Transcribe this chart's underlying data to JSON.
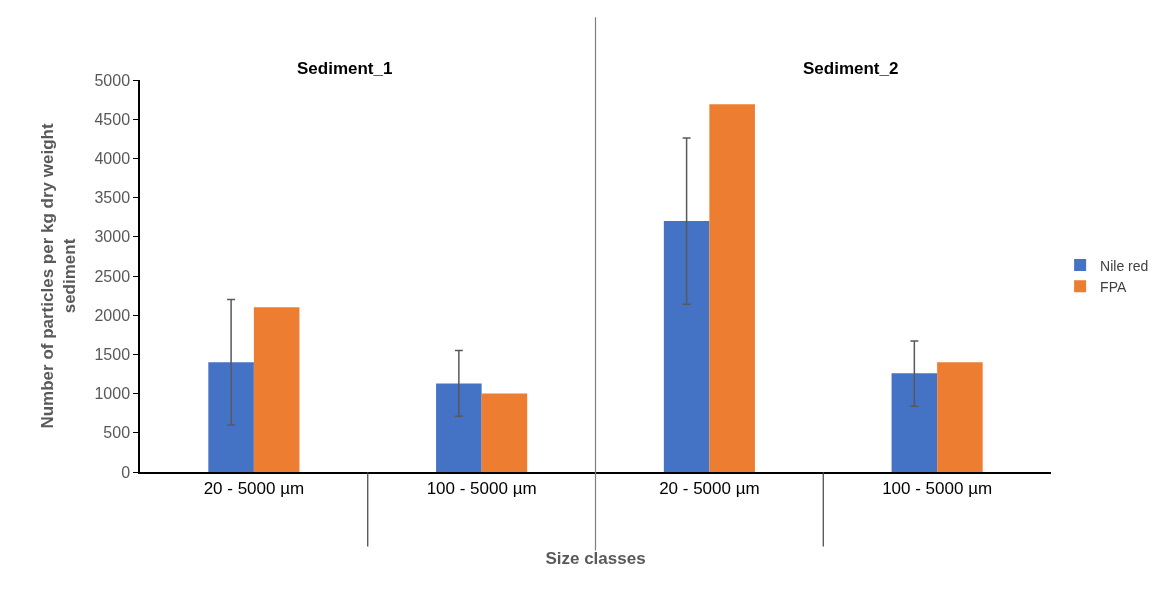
{
  "chart_data": {
    "type": "bar",
    "categories": [
      "20 - 5000 µm",
      "100 - 5000 µm",
      "20 - 5000 µm",
      "100 - 5000 µm"
    ],
    "xlabel": "Size classes",
    "ylabel": "Number of particles per kg dry weight sediment",
    "series": [
      {
        "name": "Nile red",
        "color": "#4472c4",
        "values": [
          1400,
          1130,
          3200,
          1260
        ],
        "errors": [
          [
            600,
            2200
          ],
          [
            710,
            1550
          ],
          [
            2140,
            4260
          ],
          [
            840,
            1670
          ]
        ]
      },
      {
        "name": "FPA",
        "color": "#ed7d31",
        "values": [
          2100,
          1000,
          4690,
          1400
        ]
      }
    ],
    "annotations": [
      "Sediment_1",
      "Sediment_2"
    ],
    "ylim": [
      0,
      5000
    ],
    "yticks": [
      0,
      500,
      1000,
      1500,
      2000,
      2500,
      3000,
      3500,
      4000,
      4500,
      5000
    ],
    "legend": "right"
  }
}
